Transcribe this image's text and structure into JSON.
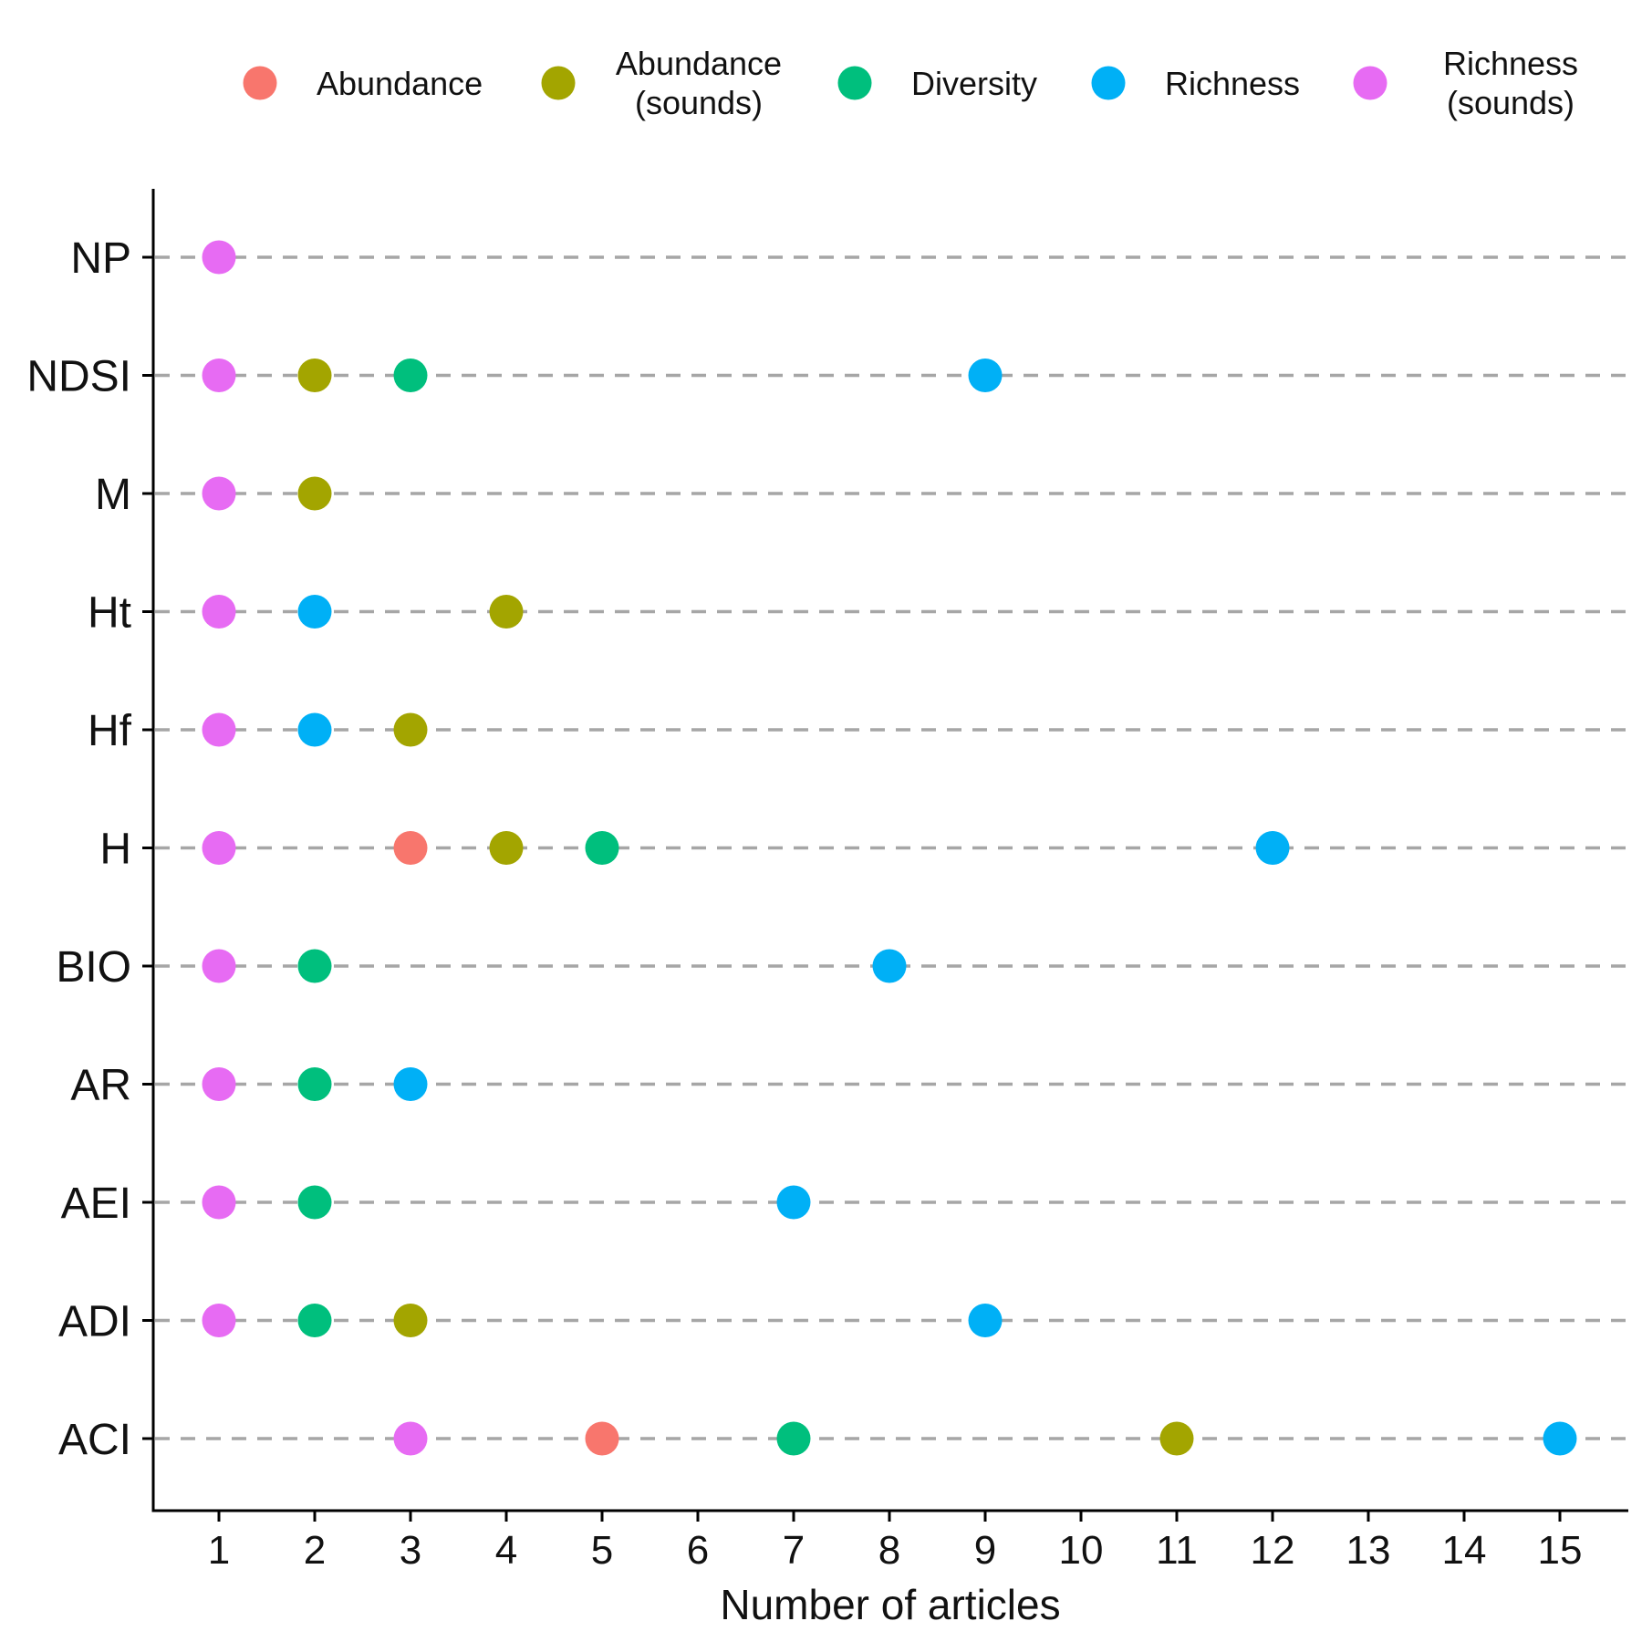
{
  "chart_data": {
    "type": "scatter",
    "title": "",
    "xlabel": "Number of articles",
    "ylabel": "",
    "xlim": [
      0.35,
      15.7
    ],
    "x_ticks": [
      1,
      2,
      3,
      4,
      5,
      6,
      7,
      8,
      9,
      10,
      11,
      12,
      13,
      14,
      15
    ],
    "categories": [
      "NP",
      "NDSI",
      "M",
      "Ht",
      "Hf",
      "H",
      "BIO",
      "AR",
      "AEI",
      "ADI",
      "ACI"
    ],
    "grid": "dashed horizontal lines per category",
    "legend_position": "top",
    "series": [
      {
        "name": "Abundance",
        "name_lines": [
          "Abundance"
        ],
        "color": "#F8766D",
        "points": [
          {
            "category": "H",
            "x": 3
          },
          {
            "category": "ACI",
            "x": 5
          }
        ]
      },
      {
        "name": "Abundance (sounds)",
        "name_lines": [
          "Abundance",
          "(sounds)"
        ],
        "color": "#A3A500",
        "points": [
          {
            "category": "NDSI",
            "x": 2
          },
          {
            "category": "M",
            "x": 2
          },
          {
            "category": "Ht",
            "x": 4
          },
          {
            "category": "Hf",
            "x": 3
          },
          {
            "category": "H",
            "x": 4
          },
          {
            "category": "ADI",
            "x": 3
          },
          {
            "category": "ACI",
            "x": 11
          }
        ]
      },
      {
        "name": "Diversity",
        "name_lines": [
          "Diversity"
        ],
        "color": "#00BF7D",
        "points": [
          {
            "category": "NDSI",
            "x": 3
          },
          {
            "category": "H",
            "x": 5
          },
          {
            "category": "BIO",
            "x": 2
          },
          {
            "category": "AR",
            "x": 2
          },
          {
            "category": "AEI",
            "x": 2
          },
          {
            "category": "ADI",
            "x": 2
          },
          {
            "category": "ACI",
            "x": 7
          }
        ]
      },
      {
        "name": "Richness",
        "name_lines": [
          "Richness"
        ],
        "color": "#00B0F6",
        "points": [
          {
            "category": "NDSI",
            "x": 9
          },
          {
            "category": "Ht",
            "x": 2
          },
          {
            "category": "Hf",
            "x": 2
          },
          {
            "category": "H",
            "x": 12
          },
          {
            "category": "BIO",
            "x": 8
          },
          {
            "category": "AR",
            "x": 3
          },
          {
            "category": "AEI",
            "x": 7
          },
          {
            "category": "ADI",
            "x": 9
          },
          {
            "category": "ACI",
            "x": 15
          }
        ]
      },
      {
        "name": "Richness (sounds)",
        "name_lines": [
          "Richness",
          "(sounds)"
        ],
        "color": "#E76BF3",
        "points": [
          {
            "category": "NP",
            "x": 1
          },
          {
            "category": "NDSI",
            "x": 1
          },
          {
            "category": "M",
            "x": 1
          },
          {
            "category": "Ht",
            "x": 1
          },
          {
            "category": "Hf",
            "x": 1
          },
          {
            "category": "H",
            "x": 1
          },
          {
            "category": "BIO",
            "x": 1
          },
          {
            "category": "AR",
            "x": 1
          },
          {
            "category": "AEI",
            "x": 1
          },
          {
            "category": "ADI",
            "x": 1
          },
          {
            "category": "ACI",
            "x": 3
          }
        ]
      }
    ]
  }
}
